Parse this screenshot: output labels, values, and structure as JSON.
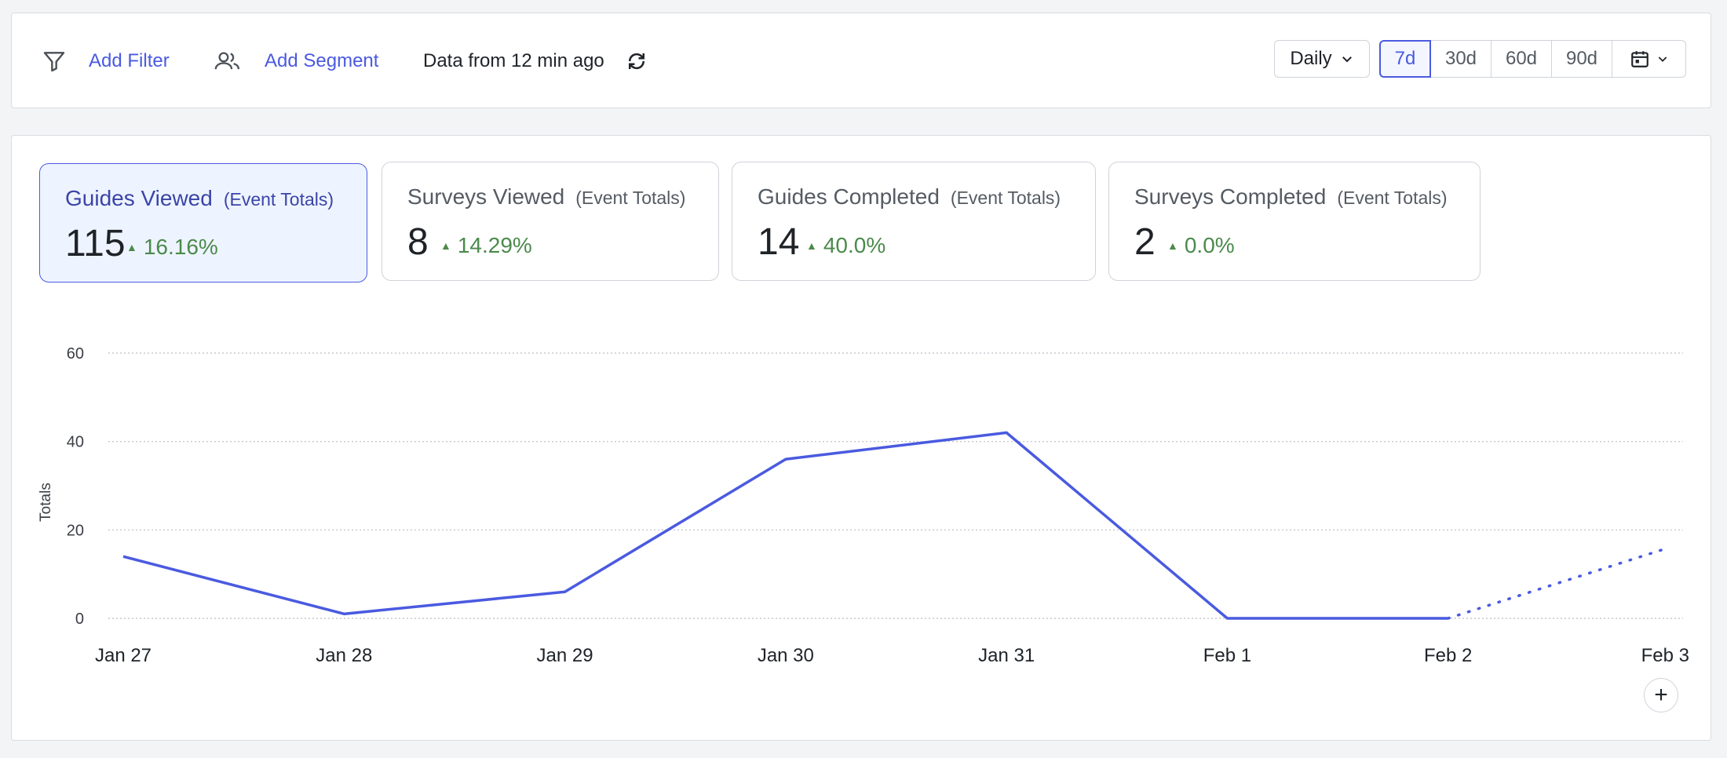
{
  "toolbar": {
    "add_filter": "Add Filter",
    "add_segment": "Add Segment",
    "data_freshness": "Data from 12 min ago",
    "interval": "Daily",
    "periods": [
      "7d",
      "30d",
      "60d",
      "90d"
    ],
    "active_period": "7d"
  },
  "cards": [
    {
      "title": "Guides Viewed",
      "sub": "(Event Totals)",
      "value": "115",
      "delta": "16.16%",
      "active": true
    },
    {
      "title": "Surveys Viewed",
      "sub": "(Event Totals)",
      "value": "8",
      "delta": "14.29%",
      "active": false
    },
    {
      "title": "Guides Completed",
      "sub": "(Event Totals)",
      "value": "14",
      "delta": "40.0%",
      "active": false
    },
    {
      "title": "Surveys Completed",
      "sub": "(Event Totals)",
      "value": "2",
      "delta": "0.0%",
      "active": false
    }
  ],
  "chart_data": {
    "type": "line",
    "ylabel": "Totals",
    "xlabel": "",
    "ylim": [
      0,
      60
    ],
    "yticks": [
      0,
      20,
      40,
      60
    ],
    "categories": [
      "Jan 27",
      "Jan 28",
      "Jan 29",
      "Jan 30",
      "Jan 31",
      "Feb 1",
      "Feb 2",
      "Feb 3"
    ],
    "series": [
      {
        "values": [
          14,
          1,
          6,
          36,
          42,
          0,
          0,
          16
        ],
        "color": "#4a5ae0",
        "projected_from_index": 6
      }
    ],
    "grid": true
  },
  "colors": {
    "accent": "#4a5ae0",
    "positive": "#4b8a4b"
  },
  "icons": [
    "filter-icon",
    "users-icon",
    "refresh-icon",
    "chevron-down-icon",
    "calendar-icon",
    "plus-icon",
    "triangle-up-icon"
  ]
}
